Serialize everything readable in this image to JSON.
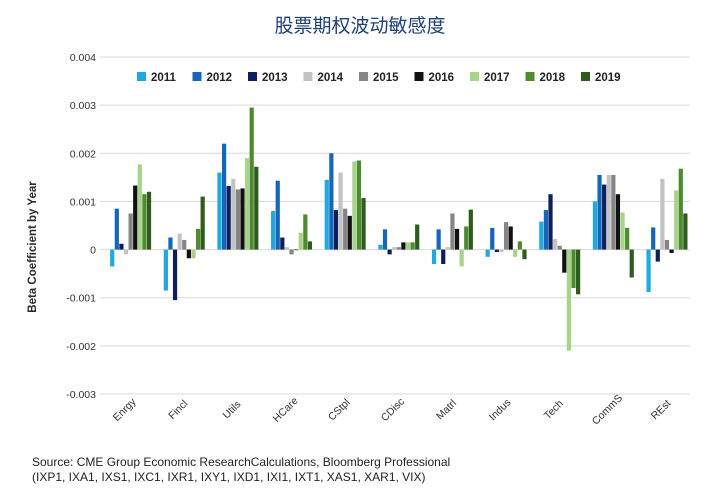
{
  "chart_data": {
    "type": "bar",
    "title": "股票期权波动敏感度",
    "xlabel": "",
    "ylabel": "Beta Coefficient by Year",
    "ylim": [
      -0.003,
      0.004
    ],
    "yticks": [
      -0.003,
      -0.002,
      -0.001,
      0,
      0.001,
      0.002,
      0.003,
      0.004
    ],
    "ytick_labels": [
      "-0.003",
      "-0.002",
      "-0.001",
      "0",
      "0.001",
      "0.002",
      "0.003",
      "0.004"
    ],
    "grid": true,
    "legend_position": "top",
    "categories": [
      "Enrgy",
      "Fincl",
      "Utils",
      "HCare",
      "CStpl",
      "CDisc",
      "Matrl",
      "Indus",
      "Tech",
      "CommS",
      "REst"
    ],
    "series": [
      {
        "name": "2011",
        "color": "#1fa9e1",
        "values": [
          -0.00035,
          -0.00085,
          0.0016,
          0.0008,
          0.00145,
          0.0001,
          -0.0003,
          -0.00015,
          0.00058,
          0.001,
          -0.00088
        ]
      },
      {
        "name": "2012",
        "color": "#1565b8",
        "values": [
          0.00085,
          0.00025,
          0.0022,
          0.00143,
          0.002,
          0.00042,
          0.00042,
          0.00045,
          0.00082,
          0.00155,
          0.00046
        ]
      },
      {
        "name": "2013",
        "color": "#0e1f5e",
        "values": [
          0.00012,
          -0.00105,
          0.00132,
          0.00025,
          0.00082,
          -0.0001,
          -0.0003,
          -5e-05,
          0.00115,
          0.00135,
          -0.00025
        ]
      },
      {
        "name": "2014",
        "color": "#c3c3c3",
        "values": [
          -0.0001,
          0.00033,
          0.00147,
          5e-05,
          0.0016,
          5e-05,
          5e-05,
          -5e-05,
          0.00022,
          0.00155,
          0.00147
        ]
      },
      {
        "name": "2015",
        "color": "#858585",
        "values": [
          0.00075,
          0.0002,
          0.00125,
          -0.0001,
          0.00085,
          5e-05,
          0.00075,
          0.00057,
          8e-05,
          0.00155,
          0.0002
        ]
      },
      {
        "name": "2016",
        "color": "#111111",
        "values": [
          0.00133,
          -0.00018,
          0.00127,
          0.0,
          0.0007,
          0.00015,
          0.00043,
          0.00048,
          -0.00048,
          0.00115,
          -7e-05
        ]
      },
      {
        "name": "2017",
        "color": "#a7d38b",
        "values": [
          0.00177,
          -0.00018,
          0.0019,
          0.00035,
          0.00183,
          0.00015,
          -0.00035,
          -0.00015,
          -0.0021,
          0.00077,
          0.00123
        ]
      },
      {
        "name": "2018",
        "color": "#4c8c2f",
        "values": [
          0.00115,
          0.00043,
          0.00295,
          0.00073,
          0.00185,
          0.00015,
          0.00048,
          0.00017,
          -0.0008,
          0.00045,
          0.00168
        ]
      },
      {
        "name": "2019",
        "color": "#2e5c1e",
        "values": [
          0.0012,
          0.0011,
          0.00172,
          0.00017,
          0.00107,
          0.00052,
          0.00083,
          -0.0002,
          -0.00093,
          -0.00058,
          0.00075
        ]
      }
    ]
  },
  "source": {
    "line1": "Source: CME Group Economic ResearchCalculations, Bloomberg Professional",
    "line2": "(IXP1, IXA1, IXS1, IXC1, IXR1, IXY1, IXD1, IXI1, IXT1, XAS1, XAR1, VIX)"
  }
}
